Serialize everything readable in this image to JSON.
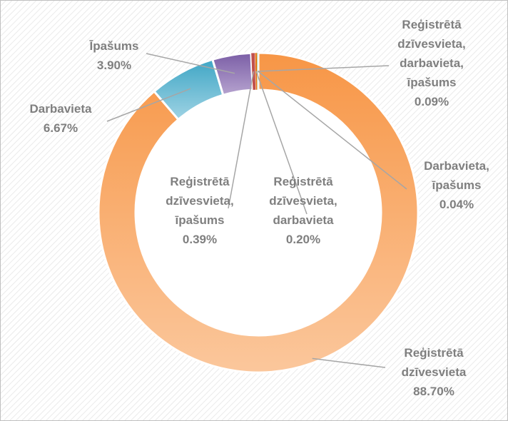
{
  "chart_data": {
    "type": "donut",
    "categories": [
      "Reģistrētā dzīvesvieta",
      "Darbavieta",
      "Īpašums",
      "Reģistrētā dzīvesvieta, īpašums",
      "Reģistrētā dzīvesvieta, darbavieta",
      "Reģistrētā dzīvesvieta, darbavieta, īpašums",
      "Darbavieta, īpašums"
    ],
    "values": [
      88.7,
      6.67,
      3.9,
      0.39,
      0.2,
      0.09,
      0.04
    ],
    "value_labels": [
      "88.70%",
      "6.67%",
      "3.90%",
      "0.39%",
      "0.20%",
      "0.09%",
      "0.04%"
    ],
    "colors": [
      "#f8a061",
      "#5cb3cf",
      "#8c70b0",
      "#c0504d",
      "#e46c0a",
      "#9bbb59",
      "#4f81bd"
    ]
  }
}
